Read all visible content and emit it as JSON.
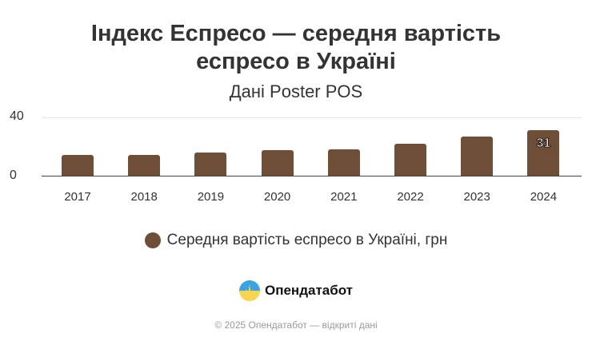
{
  "title_line1": "Індекс Еспресо — середня вартість",
  "title_line2": "еспресо в Україні",
  "subtitle": "Дані Poster POS",
  "chart_data": {
    "type": "bar",
    "title": "Індекс Еспресо — середня вартість еспресо в Україні",
    "subtitle": "Дані Poster POS",
    "categories": [
      "2017",
      "2018",
      "2019",
      "2020",
      "2021",
      "2022",
      "2023",
      "2024"
    ],
    "series": [
      {
        "name": "Середня вартість еспресо в Україні, грн",
        "color": "#6e4e37",
        "values": [
          14,
          14,
          16,
          17.5,
          18,
          22,
          27,
          31
        ]
      }
    ],
    "annotations": [
      {
        "category": "2024",
        "label": "31"
      }
    ],
    "yticks": [
      "0",
      "40"
    ],
    "ylim": [
      0,
      40
    ],
    "xlabel": "",
    "ylabel": "",
    "grid": true,
    "legend_position": "bottom"
  },
  "legend": {
    "label": "Середня вартість еспресо в Україні, грн"
  },
  "brand": {
    "name": "Опендатабот",
    "icon": "opendatabot-logo-icon"
  },
  "footer": "© 2025 Опендатабот — відкриті дані"
}
